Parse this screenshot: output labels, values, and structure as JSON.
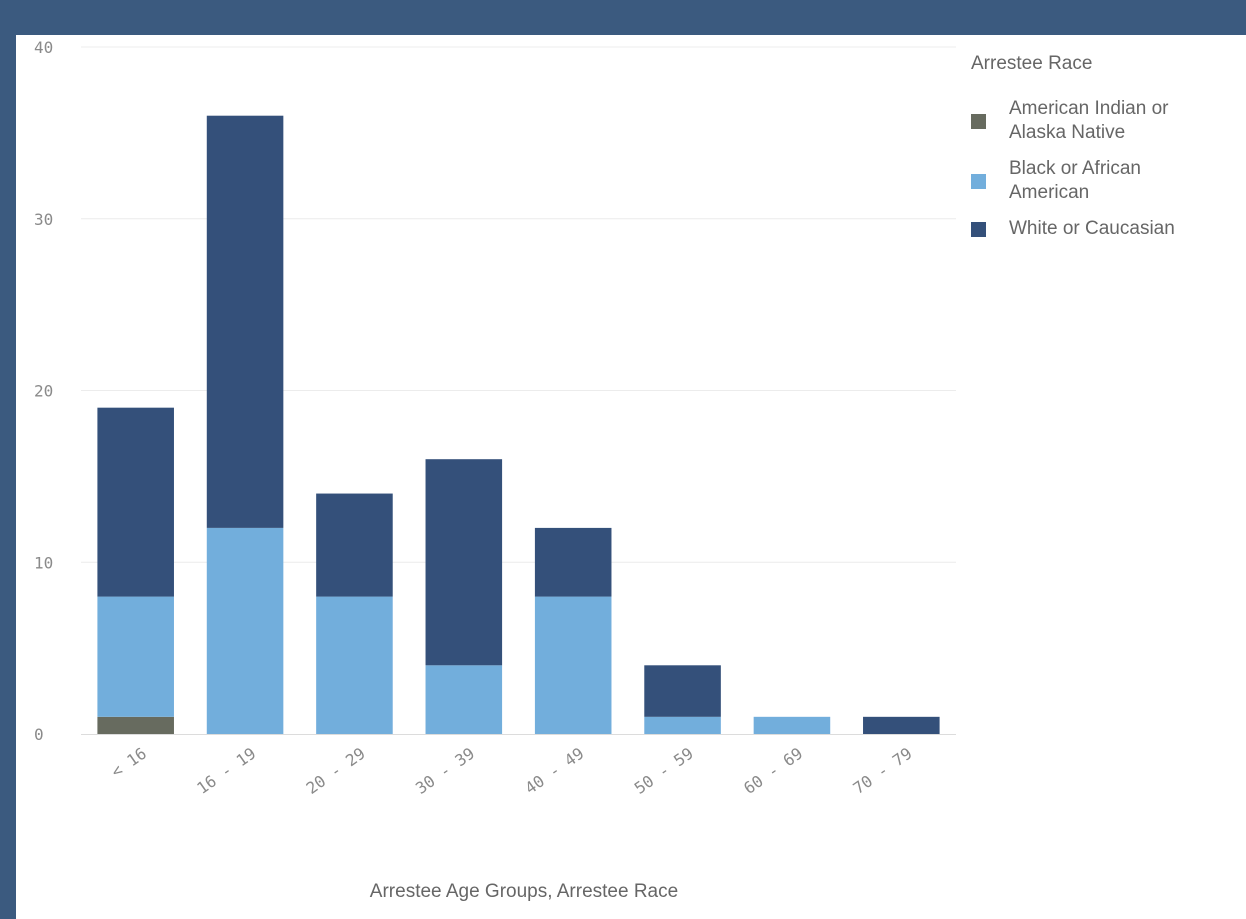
{
  "chart_data": {
    "type": "bar",
    "stacked": true,
    "xlabel": "Arrestee Age Groups, Arrestee Race",
    "ylabel": "",
    "ylim": [
      0,
      40
    ],
    "yticks": [
      "0",
      "10",
      "20",
      "30",
      "40"
    ],
    "categories": [
      "< 16",
      "16 - 19",
      "20 - 29",
      "30 - 39",
      "40 - 49",
      "50 - 59",
      "60 - 69",
      "70 - 79"
    ],
    "legend_title": "Arrestee Race",
    "legend_position": "right",
    "grid": true,
    "series": [
      {
        "name": "American Indian or Alaska Native",
        "color": "#676b5f",
        "values": [
          1,
          0,
          0,
          0,
          0,
          0,
          0,
          0
        ]
      },
      {
        "name": "Black or African American",
        "color": "#72aedc",
        "values": [
          7,
          12,
          8,
          4,
          8,
          1,
          1,
          0
        ]
      },
      {
        "name": "White or Caucasian",
        "color": "#34507a",
        "values": [
          11,
          24,
          6,
          12,
          4,
          3,
          0,
          1
        ]
      }
    ]
  }
}
